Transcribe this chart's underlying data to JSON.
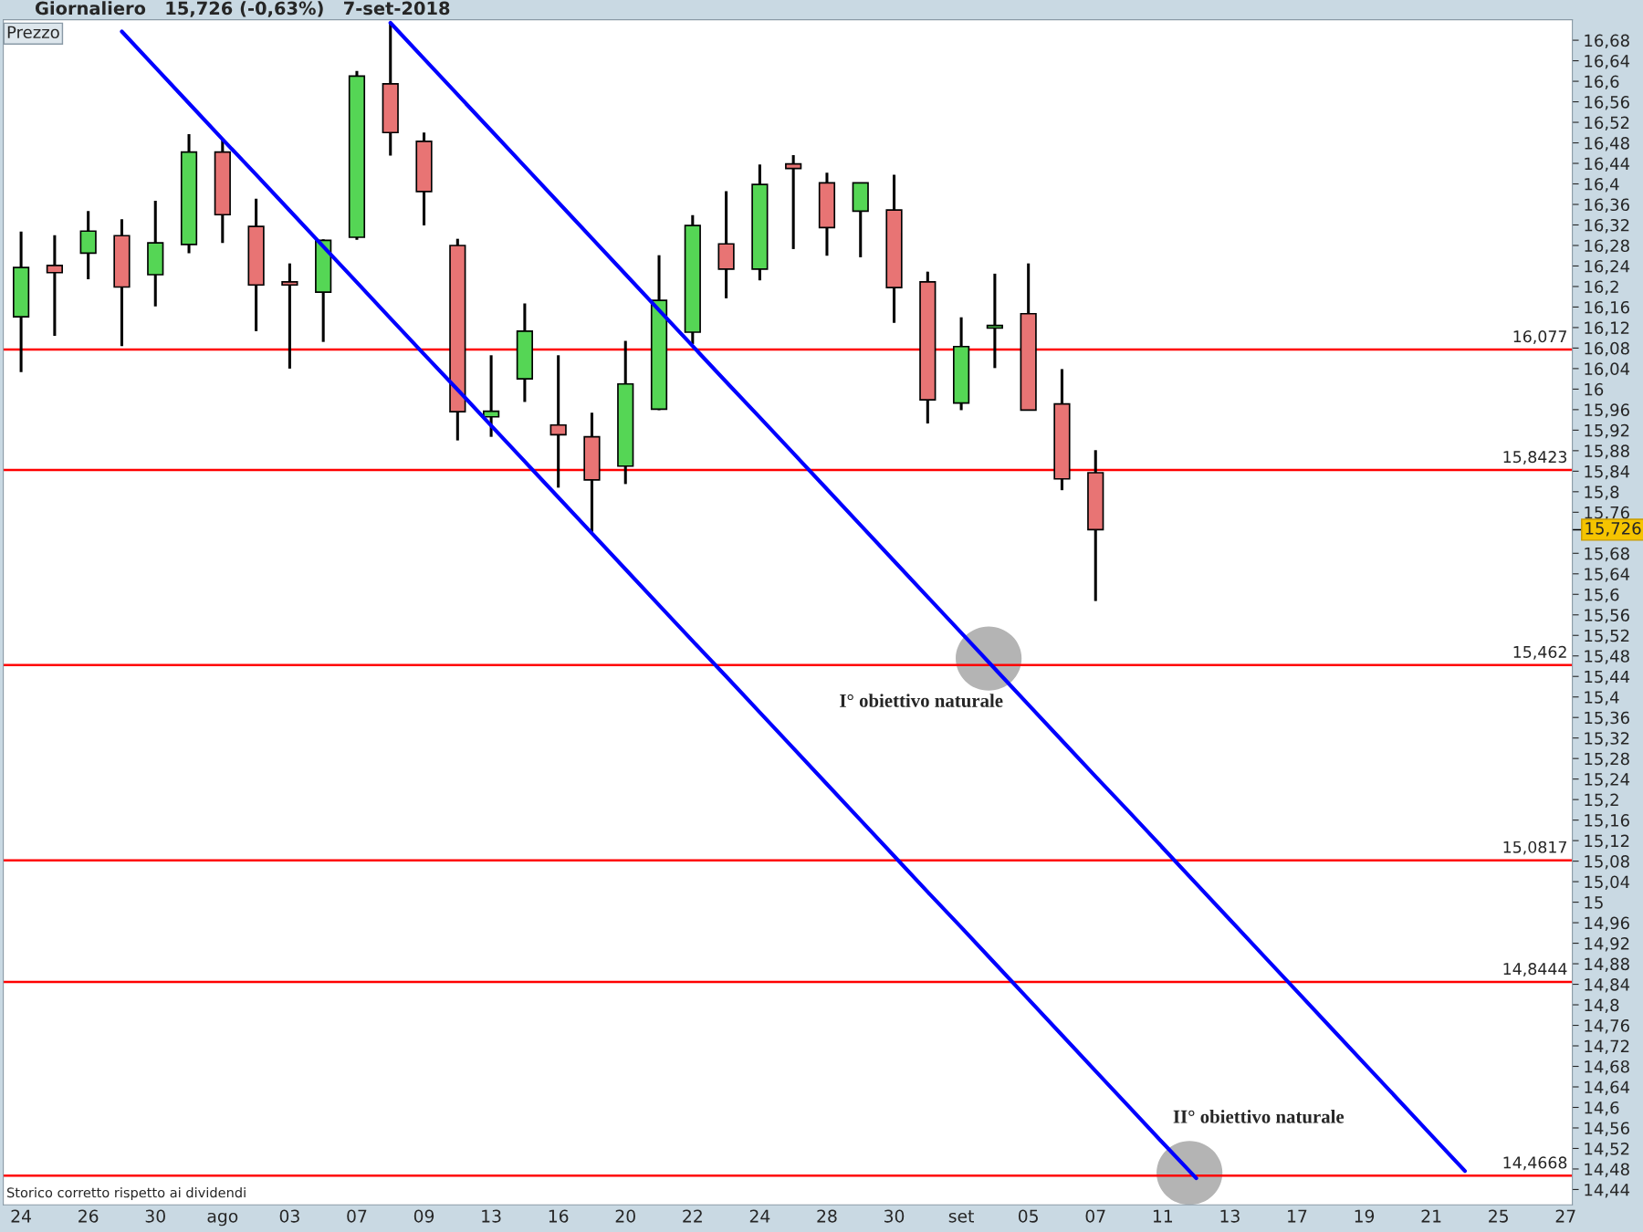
{
  "chart_data": {
    "type": "candlestick",
    "title": "Giornaliero   15,726 (-0,63%)   7-set-2018",
    "annotations": [
      "Prezzo",
      "I° obiettivo naturale",
      "II° obiettivo naturale",
      "Storico corretto rispetto ai dividendi",
      "15,726"
    ],
    "categories": [
      "24",
      null,
      "26",
      null,
      "30",
      null,
      "ago",
      null,
      "03",
      null,
      "07",
      null,
      "09",
      null,
      "13",
      null,
      "16",
      null,
      "20",
      null,
      "22",
      null,
      "24",
      null,
      "28",
      null,
      "30",
      null,
      "set",
      null,
      "05",
      null,
      "07",
      null,
      "11",
      null,
      "13",
      null,
      "17",
      null,
      "19",
      null,
      "21",
      null,
      "25",
      null,
      "27"
    ],
    "ohlc": [
      [
        16.141,
        16.307,
        16.033,
        16.237
      ],
      [
        16.241,
        16.3,
        16.104,
        16.227
      ],
      [
        16.265,
        16.347,
        16.214,
        16.308
      ],
      [
        16.299,
        16.331,
        16.084,
        16.199
      ],
      [
        16.223,
        16.367,
        16.161,
        16.285
      ],
      [
        16.282,
        16.497,
        16.265,
        16.462
      ],
      [
        16.462,
        16.488,
        16.285,
        16.34
      ],
      [
        16.317,
        16.371,
        16.113,
        16.203
      ],
      [
        16.209,
        16.245,
        16.04,
        16.203
      ],
      [
        16.189,
        16.292,
        16.092,
        16.29
      ],
      [
        16.296,
        16.62,
        16.291,
        16.61
      ],
      [
        16.595,
        16.713,
        16.455,
        16.5
      ],
      [
        16.483,
        16.5,
        16.319,
        16.385
      ],
      [
        16.28,
        16.293,
        15.9,
        15.956
      ],
      [
        15.946,
        16.066,
        15.907,
        15.957
      ],
      [
        16.02,
        16.167,
        15.975,
        16.113
      ],
      [
        15.93,
        16.066,
        15.808,
        15.911
      ],
      [
        15.907,
        15.954,
        15.722,
        15.823
      ],
      [
        15.85,
        16.094,
        15.815,
        16.01
      ],
      [
        15.961,
        16.261,
        15.959,
        16.173
      ],
      [
        16.111,
        16.339,
        16.088,
        16.319
      ],
      [
        16.283,
        16.386,
        16.177,
        16.234
      ],
      [
        16.234,
        16.438,
        16.212,
        16.399
      ],
      [
        16.439,
        16.456,
        16.273,
        16.43
      ],
      [
        16.402,
        16.422,
        16.26,
        16.315
      ],
      [
        16.347,
        16.402,
        16.257,
        16.402
      ],
      [
        16.349,
        16.418,
        16.129,
        16.198
      ],
      [
        16.209,
        16.229,
        15.933,
        15.979
      ],
      [
        15.973,
        16.14,
        15.959,
        16.083
      ],
      [
        16.119,
        16.225,
        16.041,
        16.124
      ],
      [
        16.147,
        16.245,
        15.959,
        15.959
      ],
      [
        15.971,
        16.039,
        15.803,
        15.825
      ],
      [
        15.837,
        15.881,
        15.587,
        15.726
      ],
      null,
      null,
      null,
      null,
      null,
      null,
      null,
      null,
      null,
      null,
      null,
      null,
      null,
      null
    ],
    "colors": [
      "#55d655",
      "#e87474",
      "#55d655",
      "#e87474",
      "#55d655",
      "#55d655",
      "#e87474",
      "#e87474",
      "#e87474",
      "#55d655",
      "#55d655",
      "#e87474",
      "#e87474",
      "#e87474",
      "#55d655",
      "#55d655",
      "#e87474",
      "#e87474",
      "#55d655",
      "#55d655",
      "#55d655",
      "#e87474",
      "#55d655",
      "#e87474",
      "#e87474",
      "#55d655",
      "#e87474",
      "#e87474",
      "#55d655",
      "#55d655",
      "#e87474",
      "#e87474",
      "#e87474",
      null,
      null,
      null,
      null,
      null,
      null,
      null,
      null,
      null,
      null,
      null,
      null,
      null,
      null
    ],
    "series": [
      {
        "type": "line",
        "color": "#0000ff",
        "values": [
          null,
          null,
          null,
          16.697,
          16.627,
          16.557,
          16.487,
          16.418,
          16.348,
          16.278,
          16.208,
          16.138,
          16.068,
          15.999,
          15.929,
          15.859,
          15.789,
          15.719,
          15.649,
          15.579,
          15.509,
          15.44,
          15.37,
          15.3,
          15.23,
          15.16,
          15.09,
          15.02,
          14.951,
          14.881,
          14.811,
          14.741,
          14.671,
          14.601,
          14.531,
          14.462,
          null,
          null,
          null,
          null,
          null,
          null,
          null,
          null,
          null,
          null,
          null
        ]
      },
      {
        "type": "line",
        "color": "#0000ff",
        "values": [
          null,
          null,
          null,
          null,
          null,
          null,
          null,
          null,
          null,
          null,
          null,
          16.714,
          16.644,
          16.574,
          16.504,
          16.434,
          16.364,
          16.294,
          16.224,
          16.154,
          16.084,
          16.014,
          15.945,
          15.875,
          15.805,
          15.735,
          15.665,
          15.595,
          15.525,
          15.455,
          15.385,
          15.315,
          15.245,
          15.176,
          15.106,
          15.036,
          14.966,
          14.896,
          14.826,
          14.756,
          14.686,
          14.616,
          14.546,
          14.476,
          null,
          null,
          null
        ]
      }
    ],
    "ref_lines": [
      {
        "axis": "y",
        "value": 16.077,
        "label": "16,077",
        "color": "#ff0000"
      },
      {
        "axis": "y",
        "value": 15.8423,
        "label": "15,8423",
        "color": "#ff0000"
      },
      {
        "axis": "y",
        "value": 15.462,
        "label": "15,462",
        "color": "#ff0000"
      },
      {
        "axis": "y",
        "value": 15.0817,
        "label": "15,0817",
        "color": "#ff0000"
      },
      {
        "axis": "y",
        "value": 14.8444,
        "label": "14,8444",
        "color": "#ff0000"
      },
      {
        "axis": "y",
        "value": 14.4668,
        "label": "14,4668",
        "color": "#ff0000"
      }
    ],
    "ylim": [
      14.41,
      16.72
    ],
    "yticks": [
      {
        "value": 14.44,
        "label": "14,44"
      },
      {
        "value": 14.48,
        "label": "14,48"
      },
      {
        "value": 14.52,
        "label": "14,52"
      },
      {
        "value": 14.56,
        "label": "14,56"
      },
      {
        "value": 14.6,
        "label": "14,6"
      },
      {
        "value": 14.64,
        "label": "14,64"
      },
      {
        "value": 14.68,
        "label": "14,68"
      },
      {
        "value": 14.72,
        "label": "14,72"
      },
      {
        "value": 14.76,
        "label": "14,76"
      },
      {
        "value": 14.8,
        "label": "14,8"
      },
      {
        "value": 14.84,
        "label": "14,84"
      },
      {
        "value": 14.88,
        "label": "14,88"
      },
      {
        "value": 14.92,
        "label": "14,92"
      },
      {
        "value": 14.96,
        "label": "14,96"
      },
      15,
      {
        "value": 15.04,
        "label": "15,04"
      },
      {
        "value": 15.08,
        "label": "15,08"
      },
      {
        "value": 15.12,
        "label": "15,12"
      },
      {
        "value": 15.16,
        "label": "15,16"
      },
      {
        "value": 15.2,
        "label": "15,2"
      },
      {
        "value": 15.24,
        "label": "15,24"
      },
      {
        "value": 15.28,
        "label": "15,28"
      },
      {
        "value": 15.32,
        "label": "15,32"
      },
      {
        "value": 15.36,
        "label": "15,36"
      },
      {
        "value": 15.4,
        "label": "15,4"
      },
      {
        "value": 15.44,
        "label": "15,44"
      },
      {
        "value": 15.48,
        "label": "15,48"
      },
      {
        "value": 15.52,
        "label": "15,52"
      },
      {
        "value": 15.56,
        "label": "15,56"
      },
      {
        "value": 15.6,
        "label": "15,6"
      },
      {
        "value": 15.64,
        "label": "15,64"
      },
      {
        "value": 15.68,
        "label": "15,68"
      },
      {
        "value": 15.76,
        "label": "15,76"
      },
      {
        "value": 15.8,
        "label": "15,8"
      },
      {
        "value": 15.84,
        "label": "15,84"
      },
      {
        "value": 15.88,
        "label": "15,88"
      },
      {
        "value": 15.92,
        "label": "15,92"
      },
      {
        "value": 15.96,
        "label": "15,96"
      },
      16,
      {
        "value": 16.04,
        "label": "16,04"
      },
      {
        "value": 16.08,
        "label": "16,08"
      },
      {
        "value": 16.12,
        "label": "16,12"
      },
      {
        "value": 16.16,
        "label": "16,16"
      },
      {
        "value": 16.2,
        "label": "16,2"
      },
      {
        "value": 16.24,
        "label": "16,24"
      },
      {
        "value": 16.28,
        "label": "16,28"
      },
      {
        "value": 16.32,
        "label": "16,32"
      },
      {
        "value": 16.36,
        "label": "16,36"
      },
      {
        "value": 16.4,
        "label": "16,4"
      },
      {
        "value": 16.44,
        "label": "16,44"
      },
      {
        "value": 16.48,
        "label": "16,48"
      },
      {
        "value": 16.52,
        "label": "16,52"
      },
      {
        "value": 16.56,
        "label": "16,56"
      },
      {
        "value": 16.6,
        "label": "16,6"
      },
      {
        "value": 16.64,
        "label": "16,64"
      },
      {
        "value": 16.68,
        "label": "16,68"
      }
    ],
    "grid": false,
    "legend": false
  }
}
